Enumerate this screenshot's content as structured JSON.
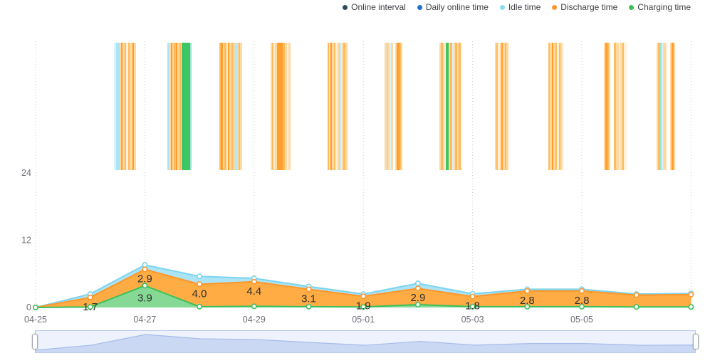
{
  "legend": {
    "items": [
      {
        "id": "online-interval",
        "label": "Online interval",
        "color": "#2e4b5e"
      },
      {
        "id": "daily-online-time",
        "label": "Daily online time",
        "color": "#1e74c8"
      },
      {
        "id": "idle-time",
        "label": "Idle time",
        "color": "#8edaf2"
      },
      {
        "id": "discharge-time",
        "label": "Discharge time",
        "color": "#ff9830"
      },
      {
        "id": "charging-time",
        "label": "Charging time",
        "color": "#3cbf5c"
      }
    ]
  },
  "chart_data": {
    "type": "area",
    "stacked": true,
    "title": "",
    "xlabel": "",
    "ylabel": "",
    "x": [
      "04-25",
      "04-26",
      "04-27",
      "04-28",
      "04-29",
      "04-30",
      "05-01",
      "05-02",
      "05-03",
      "05-04",
      "05-05",
      "05-06",
      "05-07"
    ],
    "x_label_indices": [
      0,
      2,
      4,
      6,
      8,
      10
    ],
    "x_tick_labels": [
      "04-25",
      "04-27",
      "04-29",
      "05-01",
      "05-03",
      "05-05"
    ],
    "grid_indices": [
      0,
      2,
      4,
      6,
      8,
      10,
      12
    ],
    "y_ticks": [
      "0",
      "12",
      "24"
    ],
    "y_tick_values": [
      0,
      12,
      24
    ],
    "ylim": [
      0,
      48
    ],
    "grid_style": "dotted-vertical",
    "legend_position": "top-right",
    "series": [
      {
        "name": "Charging time",
        "line": "#3cbf5c",
        "fill": "#85d994",
        "values": [
          0,
          0.1,
          3.9,
          0.15,
          0.2,
          0.15,
          0.1,
          0.5,
          0.15,
          0.15,
          0.15,
          0.1,
          0.1
        ],
        "labels": [
          null,
          null,
          "3.9",
          null,
          null,
          null,
          null,
          null,
          null,
          null,
          null,
          null,
          null
        ]
      },
      {
        "name": "Discharge time",
        "line": "#ff9629",
        "fill": "#ffac45",
        "values": [
          0,
          1.7,
          2.9,
          4.0,
          4.4,
          3.1,
          1.9,
          2.9,
          1.8,
          2.8,
          2.8,
          2.1,
          2.2
        ],
        "labels": [
          null,
          "1.7",
          "2.9",
          "4.0",
          "4.4",
          "3.1",
          "1.9",
          "2.9",
          "1.8",
          "2.8",
          "2.8",
          null,
          null
        ]
      },
      {
        "name": "Idle time",
        "line": "#7dd4ee",
        "fill": "#ace4f6",
        "values": [
          0,
          0.6,
          0.8,
          1.4,
          0.6,
          0.5,
          0.4,
          0.9,
          0.5,
          0.3,
          0.3,
          0.2,
          0.2
        ],
        "labels": [
          null,
          null,
          null,
          null,
          null,
          null,
          null,
          null,
          null,
          null,
          null,
          null,
          null
        ]
      }
    ],
    "stripe_palette": {
      "o1": "#ff9e2c",
      "o2": "#ffbc5e",
      "o3": "#ffd9a0",
      "o4": "#fff0da",
      "b1": "#ace4f6",
      "b2": "#d9f3fb",
      "g1": "#3dc663",
      "t1": "#9be2d2"
    },
    "online_interval_stripes": [
      [
        160,
        3,
        "b2"
      ],
      [
        163,
        5,
        "b1"
      ],
      [
        168,
        2,
        "o3"
      ],
      [
        170,
        2,
        "o1"
      ],
      [
        172,
        3,
        "o3"
      ],
      [
        175,
        2,
        "o2"
      ],
      [
        177,
        3,
        "o4"
      ],
      [
        180,
        2,
        "o2"
      ],
      [
        182,
        4,
        "o3"
      ],
      [
        186,
        2,
        "o1"
      ],
      [
        188,
        3,
        "o3"
      ],
      [
        235,
        2,
        "b1"
      ],
      [
        237,
        3,
        "o3"
      ],
      [
        240,
        2,
        "o1"
      ],
      [
        242,
        2,
        "o3"
      ],
      [
        244,
        3,
        "o2"
      ],
      [
        247,
        2,
        "o1"
      ],
      [
        249,
        3,
        "o3"
      ],
      [
        252,
        2,
        "o2"
      ],
      [
        254,
        1,
        "o4"
      ],
      [
        255,
        12,
        "g1"
      ],
      [
        267,
        2,
        "t1"
      ],
      [
        308,
        2,
        "o2"
      ],
      [
        310,
        3,
        "o1"
      ],
      [
        313,
        2,
        "o3"
      ],
      [
        315,
        3,
        "o2"
      ],
      [
        318,
        2,
        "o4"
      ],
      [
        320,
        2,
        "o1"
      ],
      [
        322,
        3,
        "o3"
      ],
      [
        325,
        2,
        "o2"
      ],
      [
        327,
        2,
        "b1"
      ],
      [
        329,
        2,
        "o3"
      ],
      [
        331,
        2,
        "b1"
      ],
      [
        333,
        2,
        "o3"
      ],
      [
        335,
        2,
        "o2"
      ],
      [
        337,
        3,
        "o3"
      ],
      [
        380,
        2,
        "o3"
      ],
      [
        382,
        2,
        "o2"
      ],
      [
        384,
        2,
        "o4"
      ],
      [
        386,
        3,
        "o3"
      ],
      [
        389,
        8,
        "o1"
      ],
      [
        397,
        3,
        "o2"
      ],
      [
        400,
        3,
        "o3"
      ],
      [
        403,
        2,
        "o4"
      ],
      [
        405,
        3,
        "o3"
      ],
      [
        460,
        2,
        "o2"
      ],
      [
        462,
        2,
        "o3"
      ],
      [
        464,
        2,
        "o1"
      ],
      [
        466,
        3,
        "o3"
      ],
      [
        469,
        2,
        "o2"
      ],
      [
        471,
        3,
        "o4"
      ],
      [
        474,
        2,
        "o3"
      ],
      [
        476,
        2,
        "b1"
      ],
      [
        478,
        2,
        "b2"
      ],
      [
        480,
        2,
        "o3"
      ],
      [
        482,
        3,
        "o2"
      ],
      [
        485,
        3,
        "o3"
      ],
      [
        540,
        3,
        "o3"
      ],
      [
        543,
        2,
        "b1"
      ],
      [
        545,
        2,
        "o3"
      ],
      [
        547,
        2,
        "b2"
      ],
      [
        549,
        3,
        "o3"
      ],
      [
        555,
        2,
        "o3"
      ],
      [
        557,
        4,
        "o1"
      ],
      [
        561,
        2,
        "o2"
      ],
      [
        563,
        2,
        "o3"
      ],
      [
        617,
        2,
        "o3"
      ],
      [
        619,
        3,
        "o2"
      ],
      [
        622,
        2,
        "o3"
      ],
      [
        624,
        2,
        "o4"
      ],
      [
        626,
        4,
        "g1"
      ],
      [
        630,
        2,
        "o3"
      ],
      [
        632,
        3,
        "o2"
      ],
      [
        635,
        2,
        "b2"
      ],
      [
        637,
        2,
        "o3"
      ],
      [
        639,
        3,
        "o2"
      ],
      [
        642,
        2,
        "o3"
      ],
      [
        644,
        3,
        "o2"
      ],
      [
        647,
        2,
        "o4"
      ],
      [
        695,
        2,
        "o3"
      ],
      [
        697,
        2,
        "o2"
      ],
      [
        699,
        3,
        "o4"
      ],
      [
        702,
        2,
        "o3"
      ],
      [
        704,
        2,
        "o1"
      ],
      [
        706,
        3,
        "o3"
      ],
      [
        709,
        2,
        "o2"
      ],
      [
        711,
        3,
        "o3"
      ],
      [
        770,
        2,
        "o2"
      ],
      [
        772,
        3,
        "o3"
      ],
      [
        775,
        2,
        "o1"
      ],
      [
        777,
        3,
        "o3"
      ],
      [
        780,
        2,
        "o2"
      ],
      [
        782,
        3,
        "o4"
      ],
      [
        785,
        2,
        "o2"
      ],
      [
        787,
        3,
        "o3"
      ],
      [
        848,
        2,
        "o3"
      ],
      [
        850,
        3,
        "o1"
      ],
      [
        853,
        2,
        "o2"
      ],
      [
        855,
        2,
        "o3"
      ],
      [
        862,
        3,
        "o2"
      ],
      [
        865,
        4,
        "o3"
      ],
      [
        869,
        2,
        "o4"
      ],
      [
        871,
        3,
        "o3"
      ],
      [
        874,
        2,
        "o2"
      ],
      [
        876,
        4,
        "o4"
      ],
      [
        922,
        2,
        "o3"
      ],
      [
        924,
        3,
        "o2"
      ],
      [
        927,
        2,
        "t1"
      ],
      [
        929,
        2,
        "b2"
      ],
      [
        931,
        4,
        "o3"
      ],
      [
        935,
        2,
        "o4"
      ],
      [
        941,
        2,
        "o3"
      ],
      [
        943,
        3,
        "o1"
      ],
      [
        946,
        2,
        "o3"
      ]
    ]
  },
  "datazoom": {
    "bg": "#edf2fc",
    "border": "#b9c8ee",
    "shadow_fill": "#cbd8f3",
    "shadow_line": "#a5bbea",
    "handle_color": "#ffffff"
  },
  "style": {
    "axis_text": "#6e7079",
    "grid_line": "#cccccc",
    "label_text": "#2e2e2e"
  }
}
